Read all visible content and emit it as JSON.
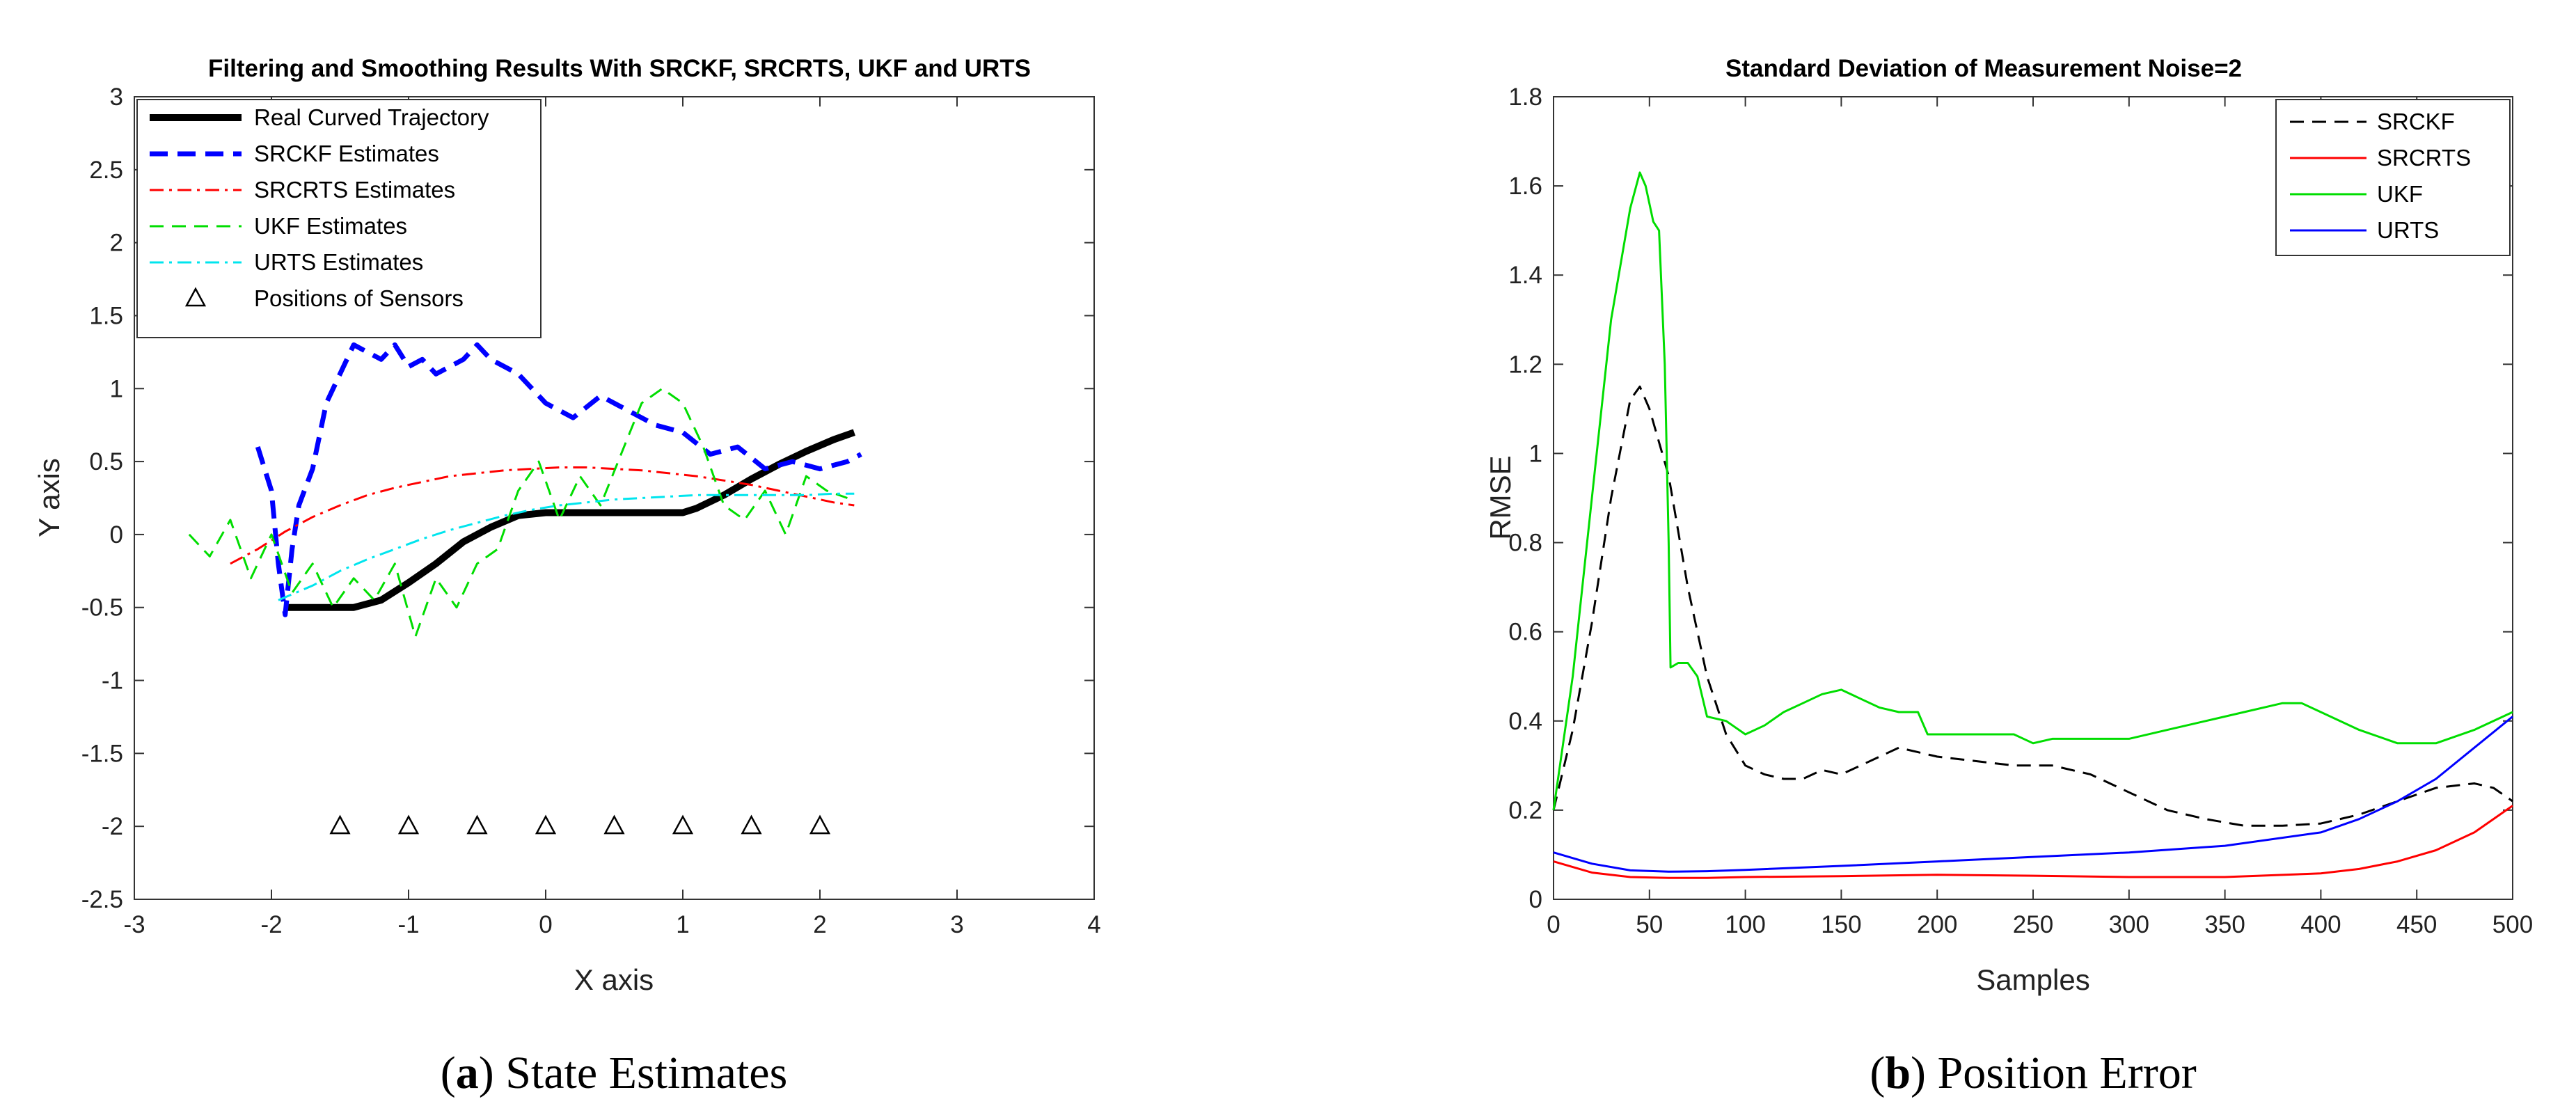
{
  "chart_data": [
    {
      "panel": "a",
      "type": "line",
      "title": "Filtering and Smoothing Results With SRCKF, SRCRTS, UKF and URTS",
      "xlabel": "X axis",
      "ylabel": "Y axis",
      "xlim": [
        -3,
        4
      ],
      "ylim": [
        -2.5,
        3
      ],
      "xticks": [
        -3,
        -2,
        -1,
        0,
        1,
        2,
        3,
        4
      ],
      "yticks": [
        -2.5,
        -2,
        -1.5,
        -1,
        -0.5,
        0,
        0.5,
        1,
        1.5,
        2,
        2.5,
        3
      ],
      "legend_position": "top-left",
      "caption_label": "a",
      "caption_text": "State Estimates",
      "series": [
        {
          "name": "Real Curved Trajectory",
          "color": "#000000",
          "style": "solid-thick",
          "x": [
            -1.9,
            -1.6,
            -1.4,
            -1.2,
            -1.0,
            -0.8,
            -0.6,
            -0.4,
            -0.2,
            0.0,
            0.2,
            0.5,
            0.8,
            1.0,
            1.1,
            1.3,
            1.5,
            1.7,
            1.9,
            2.1,
            2.25
          ],
          "y": [
            -0.5,
            -0.5,
            -0.5,
            -0.45,
            -0.33,
            -0.2,
            -0.05,
            0.05,
            0.13,
            0.15,
            0.15,
            0.15,
            0.15,
            0.15,
            0.18,
            0.27,
            0.38,
            0.48,
            0.57,
            0.65,
            0.7
          ]
        },
        {
          "name": "SRCKF Estimates",
          "color": "#0000ff",
          "style": "dashed-thick",
          "x": [
            -2.1,
            -2.0,
            -1.95,
            -1.9,
            -1.85,
            -1.8,
            -1.7,
            -1.6,
            -1.5,
            -1.4,
            -1.3,
            -1.2,
            -1.1,
            -1.0,
            -0.9,
            -0.8,
            -0.6,
            -0.5,
            -0.4,
            -0.2,
            0.0,
            0.2,
            0.4,
            0.6,
            0.8,
            1.0,
            1.2,
            1.4,
            1.6,
            1.8,
            2.0,
            2.2,
            2.3
          ],
          "y": [
            0.6,
            0.3,
            -0.2,
            -0.55,
            -0.1,
            0.2,
            0.45,
            0.9,
            1.1,
            1.3,
            1.25,
            1.2,
            1.3,
            1.15,
            1.2,
            1.1,
            1.2,
            1.3,
            1.2,
            1.1,
            0.9,
            0.8,
            0.95,
            0.85,
            0.75,
            0.7,
            0.55,
            0.6,
            0.45,
            0.5,
            0.45,
            0.5,
            0.55
          ]
        },
        {
          "name": "SRCRTS Estimates",
          "color": "#ff0000",
          "style": "dash-dot",
          "x": [
            -2.3,
            -2.1,
            -1.9,
            -1.7,
            -1.5,
            -1.3,
            -1.1,
            -0.9,
            -0.7,
            -0.5,
            -0.3,
            -0.1,
            0.1,
            0.3,
            0.5,
            0.7,
            0.9,
            1.1,
            1.3,
            1.5,
            1.7,
            1.9,
            2.1,
            2.25
          ],
          "y": [
            -0.2,
            -0.1,
            0.02,
            0.12,
            0.2,
            0.27,
            0.32,
            0.36,
            0.4,
            0.42,
            0.44,
            0.45,
            0.46,
            0.46,
            0.45,
            0.44,
            0.42,
            0.4,
            0.37,
            0.34,
            0.3,
            0.26,
            0.22,
            0.2
          ]
        },
        {
          "name": "UKF Estimates",
          "color": "#00dd00",
          "style": "dashed",
          "x": [
            -2.6,
            -2.45,
            -2.3,
            -2.15,
            -2.0,
            -1.85,
            -1.7,
            -1.55,
            -1.4,
            -1.25,
            -1.1,
            -0.95,
            -0.8,
            -0.65,
            -0.5,
            -0.35,
            -0.2,
            -0.05,
            0.1,
            0.25,
            0.4,
            0.55,
            0.7,
            0.85,
            1.0,
            1.15,
            1.3,
            1.45,
            1.6,
            1.75,
            1.9,
            2.05,
            2.2
          ],
          "y": [
            0.0,
            -0.15,
            0.1,
            -0.3,
            0.0,
            -0.4,
            -0.2,
            -0.5,
            -0.3,
            -0.45,
            -0.2,
            -0.7,
            -0.3,
            -0.5,
            -0.2,
            -0.1,
            0.3,
            0.5,
            0.1,
            0.4,
            0.2,
            0.55,
            0.9,
            1.0,
            0.9,
            0.6,
            0.2,
            0.1,
            0.3,
            0.0,
            0.4,
            0.3,
            0.25
          ]
        },
        {
          "name": "URTS Estimates",
          "color": "#00e5ee",
          "style": "dash-dot",
          "x": [
            -1.95,
            -1.7,
            -1.5,
            -1.3,
            -1.1,
            -0.9,
            -0.7,
            -0.5,
            -0.3,
            -0.1,
            0.1,
            0.3,
            0.5,
            0.7,
            0.9,
            1.1,
            1.3,
            1.5,
            1.7,
            1.9,
            2.1,
            2.25
          ],
          "y": [
            -0.45,
            -0.35,
            -0.25,
            -0.17,
            -0.1,
            -0.03,
            0.03,
            0.08,
            0.13,
            0.17,
            0.2,
            0.22,
            0.24,
            0.25,
            0.26,
            0.27,
            0.27,
            0.27,
            0.27,
            0.27,
            0.28,
            0.28
          ]
        },
        {
          "name": "Positions of Sensors",
          "color": "#000000",
          "style": "triangle-markers",
          "x": [
            -1.5,
            -1.0,
            -0.5,
            0.0,
            0.5,
            1.0,
            1.5,
            2.0
          ],
          "y": [
            -2,
            -2,
            -2,
            -2,
            -2,
            -2,
            -2,
            -2
          ]
        }
      ]
    },
    {
      "panel": "b",
      "type": "line",
      "title": "Standard Deviation of Measurement Noise=2",
      "xlabel": "Samples",
      "ylabel": "RMSE",
      "xlim": [
        0,
        500
      ],
      "ylim": [
        0,
        1.8
      ],
      "xticks": [
        0,
        50,
        100,
        150,
        200,
        250,
        300,
        350,
        400,
        450,
        500
      ],
      "yticks": [
        0,
        0.2,
        0.4,
        0.6,
        0.8,
        1,
        1.2,
        1.4,
        1.6,
        1.8
      ],
      "legend_position": "top-right",
      "caption_label": "b",
      "caption_text": "Position Error",
      "series": [
        {
          "name": "SRCKF",
          "color": "#000000",
          "style": "dashed",
          "x": [
            0,
            10,
            20,
            30,
            40,
            45,
            50,
            60,
            70,
            80,
            90,
            100,
            110,
            120,
            130,
            140,
            150,
            160,
            170,
            180,
            190,
            200,
            220,
            240,
            260,
            280,
            300,
            320,
            340,
            360,
            380,
            400,
            420,
            440,
            460,
            480,
            490,
            500
          ],
          "y": [
            0.2,
            0.38,
            0.62,
            0.9,
            1.12,
            1.15,
            1.1,
            0.95,
            0.7,
            0.5,
            0.37,
            0.3,
            0.28,
            0.27,
            0.27,
            0.29,
            0.28,
            0.3,
            0.32,
            0.34,
            0.33,
            0.32,
            0.31,
            0.3,
            0.3,
            0.28,
            0.24,
            0.2,
            0.18,
            0.165,
            0.165,
            0.17,
            0.19,
            0.22,
            0.25,
            0.26,
            0.25,
            0.22
          ]
        },
        {
          "name": "SRCRTS",
          "color": "#ff0000",
          "style": "solid",
          "x": [
            0,
            20,
            40,
            60,
            80,
            100,
            150,
            200,
            250,
            300,
            350,
            400,
            420,
            440,
            460,
            480,
            500
          ],
          "y": [
            0.085,
            0.06,
            0.05,
            0.048,
            0.048,
            0.05,
            0.052,
            0.055,
            0.053,
            0.05,
            0.05,
            0.058,
            0.068,
            0.085,
            0.11,
            0.15,
            0.21
          ]
        },
        {
          "name": "UKF",
          "color": "#00dd00",
          "style": "solid",
          "x": [
            0,
            10,
            20,
            30,
            40,
            45,
            48,
            52,
            55,
            58,
            60,
            61,
            65,
            70,
            75,
            80,
            90,
            100,
            110,
            120,
            130,
            140,
            150,
            160,
            170,
            180,
            190,
            195,
            200,
            220,
            240,
            250,
            260,
            280,
            300,
            320,
            340,
            360,
            380,
            390,
            400,
            420,
            440,
            460,
            480,
            500
          ],
          "y": [
            0.2,
            0.5,
            0.9,
            1.3,
            1.55,
            1.63,
            1.6,
            1.52,
            1.5,
            1.2,
            0.8,
            0.52,
            0.53,
            0.53,
            0.5,
            0.41,
            0.4,
            0.37,
            0.39,
            0.42,
            0.44,
            0.46,
            0.47,
            0.45,
            0.43,
            0.42,
            0.42,
            0.37,
            0.37,
            0.37,
            0.37,
            0.35,
            0.36,
            0.36,
            0.36,
            0.38,
            0.4,
            0.42,
            0.44,
            0.44,
            0.42,
            0.38,
            0.35,
            0.35,
            0.38,
            0.42
          ]
        },
        {
          "name": "URTS",
          "color": "#0000ff",
          "style": "solid",
          "x": [
            0,
            20,
            40,
            60,
            80,
            100,
            150,
            200,
            250,
            300,
            350,
            400,
            420,
            440,
            460,
            480,
            500
          ],
          "y": [
            0.105,
            0.08,
            0.065,
            0.062,
            0.063,
            0.066,
            0.075,
            0.085,
            0.095,
            0.105,
            0.12,
            0.15,
            0.18,
            0.22,
            0.27,
            0.34,
            0.41
          ]
        }
      ]
    }
  ]
}
